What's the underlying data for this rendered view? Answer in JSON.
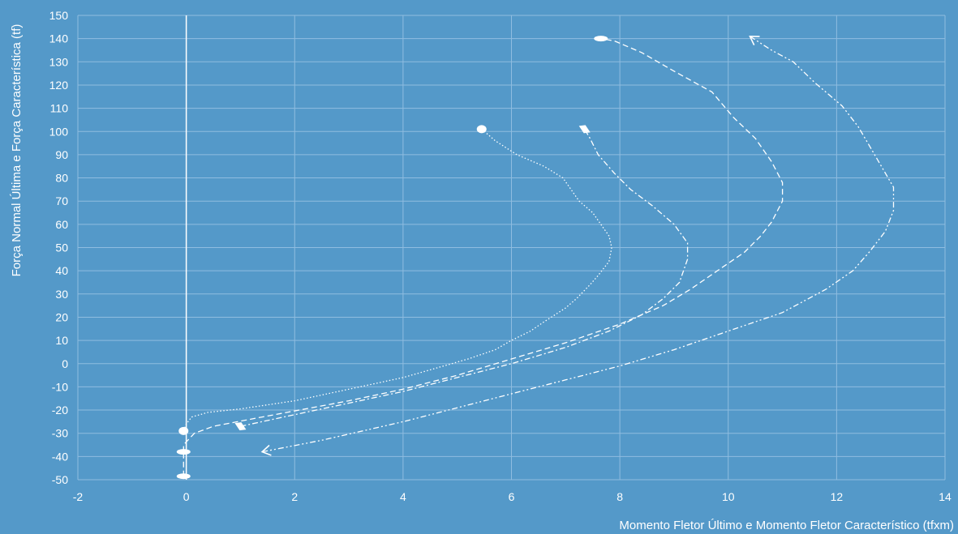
{
  "chart_data": {
    "type": "line",
    "title": "",
    "xlabel": "Momento Fletor Último e Momento Fletor Característico (tfxm)",
    "ylabel": "Força Normal Última e Força Característica (tf)",
    "xlim": [
      -2,
      14
    ],
    "ylim": [
      -50,
      150
    ],
    "xticks": [
      -2,
      0,
      2,
      4,
      6,
      8,
      10,
      12,
      14
    ],
    "yticks": [
      -50,
      -40,
      -30,
      -20,
      -10,
      0,
      10,
      20,
      30,
      40,
      50,
      60,
      70,
      80,
      90,
      100,
      110,
      120,
      130,
      140,
      150
    ],
    "grid": true,
    "legend": "none",
    "colors": {
      "background": "#5499c9",
      "grid": "#8fbde0",
      "lines": "#ffffff"
    },
    "series": [
      {
        "style": "dotted",
        "marker_start": "circle",
        "marker_end": "circle",
        "points": [
          [
            -0.05,
            -29
          ],
          [
            0,
            -26
          ],
          [
            0.1,
            -23
          ],
          [
            0.4,
            -21
          ],
          [
            1,
            -19.5
          ],
          [
            2,
            -16
          ],
          [
            3,
            -11
          ],
          [
            4,
            -6
          ],
          [
            4.6,
            -2
          ],
          [
            5.2,
            2
          ],
          [
            5.7,
            6
          ],
          [
            6.0,
            10
          ],
          [
            6.35,
            14
          ],
          [
            6.6,
            18
          ],
          [
            6.8,
            21
          ],
          [
            7.0,
            24
          ],
          [
            7.2,
            28
          ],
          [
            7.45,
            34
          ],
          [
            7.6,
            38
          ],
          [
            7.8,
            44
          ],
          [
            7.85,
            50
          ],
          [
            7.8,
            55
          ],
          [
            7.65,
            60
          ],
          [
            7.5,
            65
          ],
          [
            7.25,
            70
          ],
          [
            7.1,
            75
          ],
          [
            6.95,
            80
          ],
          [
            6.6,
            85
          ],
          [
            6.1,
            90
          ],
          [
            5.7,
            96
          ],
          [
            5.45,
            101
          ]
        ]
      },
      {
        "style": "dash-dot",
        "marker_start": "diamond",
        "marker_end": "diamond",
        "points": [
          [
            1.0,
            -27
          ],
          [
            1.8,
            -23
          ],
          [
            3,
            -17
          ],
          [
            4,
            -12
          ],
          [
            5,
            -6
          ],
          [
            6,
            0
          ],
          [
            7,
            7
          ],
          [
            7.8,
            14
          ],
          [
            8.4,
            21
          ],
          [
            8.8,
            28
          ],
          [
            9.1,
            35
          ],
          [
            9.25,
            45
          ],
          [
            9.25,
            52
          ],
          [
            9.0,
            60
          ],
          [
            8.6,
            68
          ],
          [
            8.2,
            75
          ],
          [
            7.9,
            82
          ],
          [
            7.6,
            90
          ],
          [
            7.45,
            97
          ],
          [
            7.35,
            101
          ]
        ]
      },
      {
        "style": "dashed",
        "marker_start": "ellipse",
        "marker_end": "ellipse",
        "points": [
          [
            -0.05,
            -38
          ],
          [
            -0.05,
            -35
          ],
          [
            0.15,
            -30
          ],
          [
            0.5,
            -27
          ],
          [
            1.4,
            -23
          ],
          [
            3,
            -16
          ],
          [
            4,
            -11
          ],
          [
            5,
            -5
          ],
          [
            6,
            2
          ],
          [
            7,
            9
          ],
          [
            8,
            17
          ],
          [
            8.8,
            25
          ],
          [
            9.3,
            32
          ],
          [
            9.8,
            40
          ],
          [
            10.3,
            48
          ],
          [
            10.6,
            55
          ],
          [
            10.8,
            61
          ],
          [
            11.0,
            70
          ],
          [
            11.0,
            78
          ],
          [
            10.8,
            87
          ],
          [
            10.5,
            97
          ],
          [
            10.1,
            106
          ],
          [
            9.7,
            117
          ],
          [
            9.0,
            126
          ],
          [
            8.4,
            134
          ],
          [
            7.9,
            139
          ],
          [
            7.65,
            140
          ]
        ]
      },
      {
        "style": "dash-dot-dot",
        "marker_start": "arrow",
        "marker_end": "arrow",
        "points": [
          [
            1.4,
            -38
          ],
          [
            2.5,
            -33
          ],
          [
            4,
            -25
          ],
          [
            5,
            -19
          ],
          [
            6,
            -13
          ],
          [
            7,
            -7
          ],
          [
            8,
            -1
          ],
          [
            9,
            6
          ],
          [
            10,
            14
          ],
          [
            11,
            22
          ],
          [
            11.8,
            32
          ],
          [
            12.3,
            40
          ],
          [
            12.6,
            48
          ],
          [
            12.9,
            57
          ],
          [
            13.05,
            66
          ],
          [
            13.05,
            76
          ],
          [
            12.85,
            84
          ],
          [
            12.6,
            94
          ],
          [
            12.4,
            102
          ],
          [
            12.1,
            111
          ],
          [
            11.6,
            121
          ],
          [
            11.2,
            130
          ],
          [
            10.8,
            135
          ],
          [
            10.4,
            141
          ]
        ]
      }
    ]
  }
}
